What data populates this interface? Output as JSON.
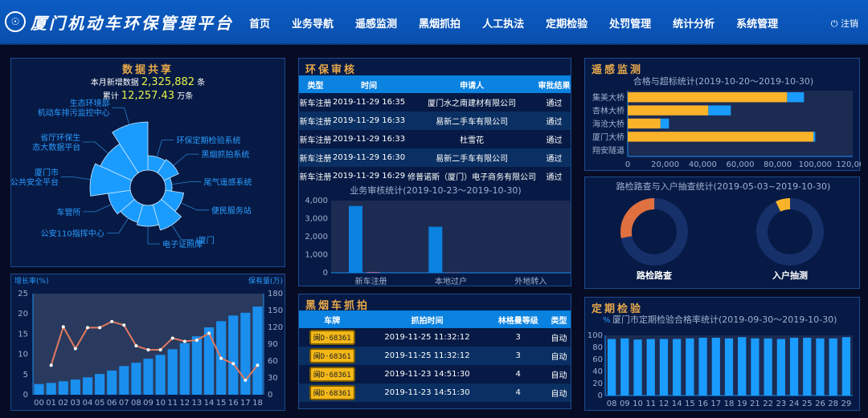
{
  "header": {
    "title": "厦门机动车环保管理平台",
    "logo_icon": "national-emblem-icon",
    "nav": [
      "首页",
      "业务导航",
      "遥感监测",
      "黑烟抓拍",
      "人工执法",
      "定期检验",
      "处罚管理",
      "统计分析",
      "系统管理"
    ],
    "logout": "注销",
    "logout_icon": "power-icon"
  },
  "share": {
    "title": "数据共享",
    "month_label": "本月新增数据",
    "month_value": "2,325,882",
    "month_unit": "条",
    "total_label": "累计",
    "total_value": "12,257.43",
    "total_unit": "万条"
  },
  "rose": {
    "type": "pie",
    "labels": [
      "环保定期检验系统",
      "黑烟抓拍系统",
      "尾气遥感系统",
      "便民服务站",
      "I厦门",
      "电子证照库",
      "公安110指挥中心",
      "车管所",
      "厦门市\n公共安全平台",
      "省厅环保生\n态大数据平台",
      "生态环境部\n机动车排污监控中心"
    ],
    "values": [
      40,
      42,
      30,
      45,
      55,
      48,
      45,
      50,
      72,
      65,
      82
    ],
    "color": "#1a9cff"
  },
  "chart_data": [
    {
      "type": "bar+line",
      "categories": [
        "00",
        "01",
        "02",
        "03",
        "04",
        "05",
        "06",
        "07",
        "08",
        "09",
        "10",
        "11",
        "12",
        "13",
        "14",
        "15",
        "16",
        "17",
        "18"
      ],
      "ylabel_left": "增长率(%)",
      "ylabel_right": "保有量(万)",
      "ylim_left": [
        0,
        25
      ],
      "ylim_right": [
        0,
        180
      ],
      "left_ticks": [
        0,
        5,
        10,
        15,
        20,
        25
      ],
      "right_ticks": [
        0,
        30,
        60,
        90,
        120,
        150,
        180
      ],
      "bars": [
        19,
        21,
        24,
        27,
        31,
        37,
        43,
        51,
        57,
        64,
        71,
        81,
        92,
        104,
        120,
        131,
        141,
        146,
        157
      ],
      "line": [
        null,
        7.3,
        16.8,
        11.4,
        16.6,
        16.6,
        18.1,
        17.2,
        12.1,
        11.1,
        11.1,
        14,
        13.2,
        13.5,
        15.2,
        9,
        7.7,
        3.6,
        7.3
      ],
      "bar_color": "#1a8fee",
      "line_color": "#e07a5f"
    },
    {
      "type": "bar",
      "title": "业务审核统计(2019-10-23～2019-10-30)",
      "categories": [
        "新车注册",
        "本地过户",
        "外地转入"
      ],
      "ylim": [
        0,
        4000
      ],
      "ticks": [
        "0",
        "1,000",
        "2,000",
        "3,000",
        "4,000"
      ],
      "series": [
        {
          "values": [
            3700,
            2550,
            0
          ],
          "color": "#0a82e0"
        },
        {
          "values": [
            40,
            20,
            0
          ],
          "color": "#b06a8a"
        }
      ]
    },
    {
      "type": "bar-horizontal-stacked",
      "title": "合格与超标统计(2019-10-20～2019-10-30)",
      "categories": [
        "集美大桥",
        "杏林大桥",
        "海沧大桥",
        "厦门大桥",
        "翔安隧道"
      ],
      "xlim": [
        0,
        120000
      ],
      "ticks": [
        "0",
        "20,000",
        "40,000",
        "60,000",
        "80,000",
        "100,000",
        "120,000"
      ],
      "series": [
        {
          "values": [
            85000,
            43000,
            17500,
            99000,
            0
          ],
          "color": "#fbb32a"
        },
        {
          "values": [
            9000,
            12000,
            4500,
            1000,
            0
          ],
          "color": "#1a9cff"
        }
      ]
    },
    {
      "type": "pie",
      "title": "路检路查与入户抽查统计(2019-05-03~2019-10-30)",
      "donuts": [
        {
          "label": "路检路查",
          "fraction": 0.28,
          "color": "#e07040"
        },
        {
          "label": "入户抽测",
          "fraction": 0.07,
          "color": "#fbb32a"
        }
      ],
      "track_color": "#16306a"
    },
    {
      "type": "bar",
      "title": "厦门市定期检验合格率统计(2019-09-30～2019-10-30)",
      "legend_unit": "%",
      "categories": [
        "08",
        "09",
        "10",
        "11",
        "12",
        "14",
        "15",
        "16",
        "17",
        "18",
        "19",
        "21",
        "22",
        "23",
        "24",
        "25",
        "26",
        "28",
        "29"
      ],
      "values": [
        94,
        95,
        93,
        94,
        94,
        94,
        95,
        96,
        96,
        95,
        97,
        95,
        95,
        94,
        96,
        96,
        95,
        95,
        97
      ],
      "ylim": [
        0,
        100
      ],
      "ticks": [
        "0",
        "20",
        "40",
        "60",
        "80",
        "100"
      ],
      "color": "#1a9cff"
    }
  ],
  "audit": {
    "title": "环保审核",
    "columns": [
      "类型",
      "时间",
      "申请人",
      "审批结果"
    ],
    "rows": [
      [
        "新车注册",
        "2019-11-29 16:35",
        "厦门水之南建材有限公司",
        "通过"
      ],
      [
        "新车注册",
        "2019-11-29 16:33",
        "易新二手车有限公司",
        "通过"
      ],
      [
        "新车注册",
        "2019-11-29 16:33",
        "杜雪花",
        "通过"
      ],
      [
        "新车注册",
        "2019-11-29 16:30",
        "易新二手车有限公司",
        "通过"
      ],
      [
        "新车注册",
        "2019-11-29 16:29",
        "修普诺斯（厦门）电子商务有限公司",
        "通过"
      ]
    ]
  },
  "smoke": {
    "title": "黑烟车抓拍",
    "columns": [
      "车牌",
      "抓拍时间",
      "林格曼等级",
      "类型"
    ],
    "rows": [
      [
        "闽D·68361",
        "2019-11-25 11:32:12",
        "3",
        "自动"
      ],
      [
        "闽D·68361",
        "2019-11-25 11:32:12",
        "3",
        "自动"
      ],
      [
        "闽D·68361",
        "2019-11-23 14:51:30",
        "4",
        "自动"
      ],
      [
        "闽D·68361",
        "2019-11-23 14:51:30",
        "4",
        "自动"
      ]
    ]
  },
  "remote": {
    "title": "遥感监测"
  },
  "periodic": {
    "title": "定期检验"
  }
}
